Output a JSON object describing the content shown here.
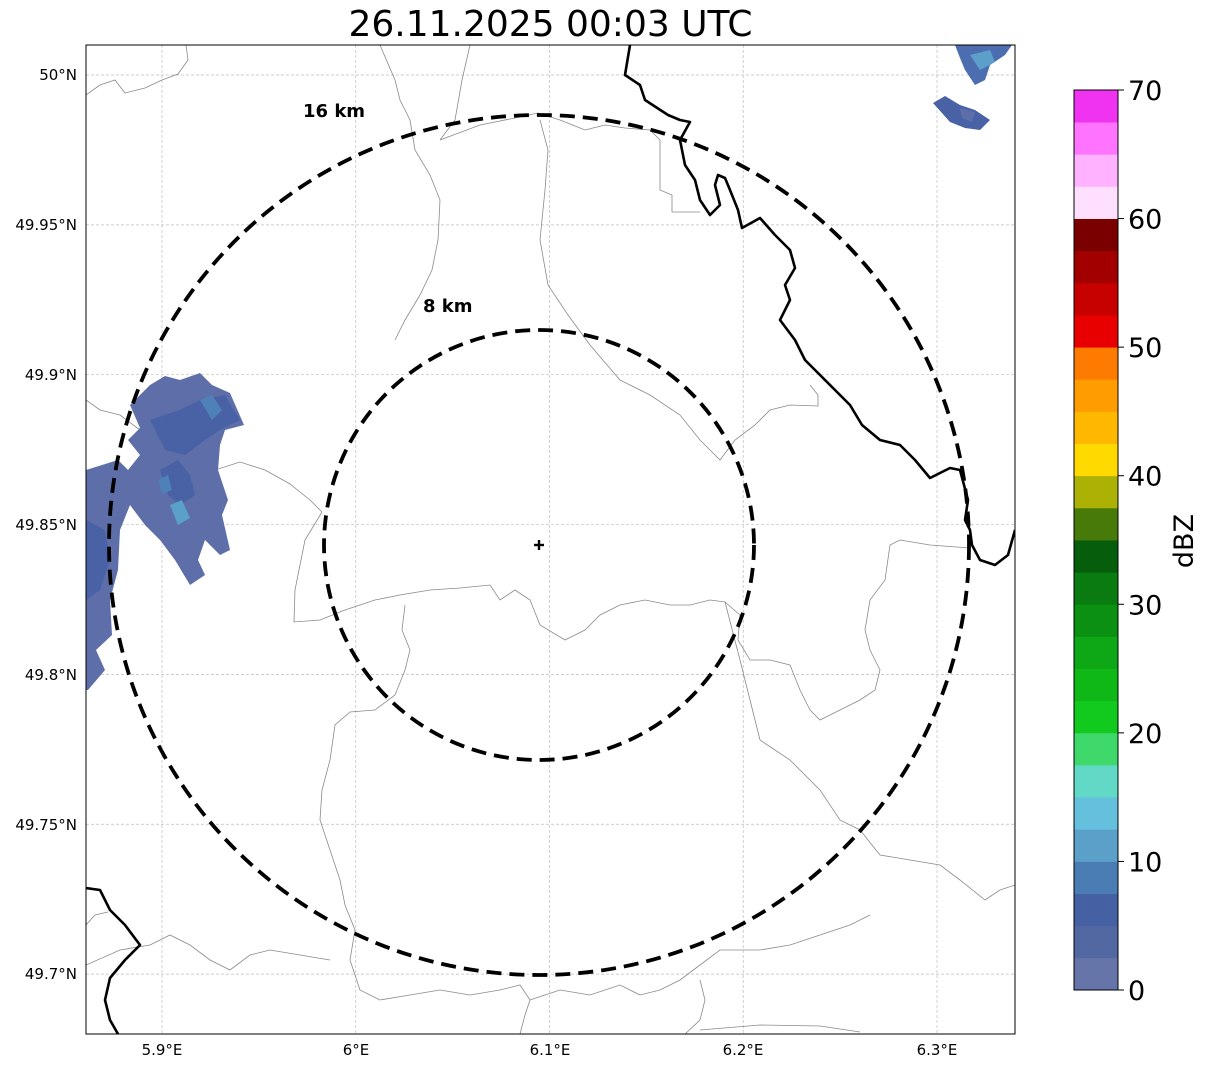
{
  "title": "26.11.2025 00:03 UTC",
  "map": {
    "lon_range": [
      5.86,
      6.34
    ],
    "lat_range": [
      49.68,
      50.01
    ],
    "x_ticks": [
      {
        "value": 5.9,
        "label": "5.9°E"
      },
      {
        "value": 6.0,
        "label": "6°E"
      },
      {
        "value": 6.1,
        "label": "6.1°E"
      },
      {
        "value": 6.2,
        "label": "6.2°E"
      },
      {
        "value": 6.3,
        "label": "6.3°E"
      }
    ],
    "y_ticks": [
      {
        "value": 50.0,
        "label": "50°N"
      },
      {
        "value": 49.95,
        "label": "49.95°N"
      },
      {
        "value": 49.9,
        "label": "49.9°N"
      },
      {
        "value": 49.85,
        "label": "49.85°N"
      },
      {
        "value": 49.8,
        "label": "49.8°N"
      },
      {
        "value": 49.75,
        "label": "49.75°N"
      },
      {
        "value": 49.7,
        "label": "49.7°N"
      }
    ],
    "gridlines": true,
    "radar_site": {
      "lon": 6.094,
      "lat": 49.843,
      "marker": "plus"
    },
    "range_rings": [
      {
        "label": "8 km",
        "radius_km": 8
      },
      {
        "label": "16 km",
        "radius_km": 16
      }
    ]
  },
  "colorbar": {
    "label": "dBZ",
    "ticks": [
      "0",
      "10",
      "20",
      "30",
      "40",
      "50",
      "60",
      "70"
    ],
    "min": 0,
    "max": 70,
    "step": 2.5,
    "colors": [
      "#6575aa",
      "#5268a2",
      "#4561a3",
      "#4b7db5",
      "#5aa0c8",
      "#64c0dd",
      "#62d8c6",
      "#3ed86b",
      "#12c91d",
      "#0fb816",
      "#0ea716",
      "#0b9012",
      "#097b10",
      "#065d0b",
      "#487a0a",
      "#adb105",
      "#ffd900",
      "#ffb700",
      "#ff9c00",
      "#ff7b00",
      "#e80000",
      "#c70000",
      "#a20000",
      "#7a0000",
      "#ffdfff",
      "#ffb2ff",
      "#ff74ff",
      "#f033f0"
    ]
  }
}
